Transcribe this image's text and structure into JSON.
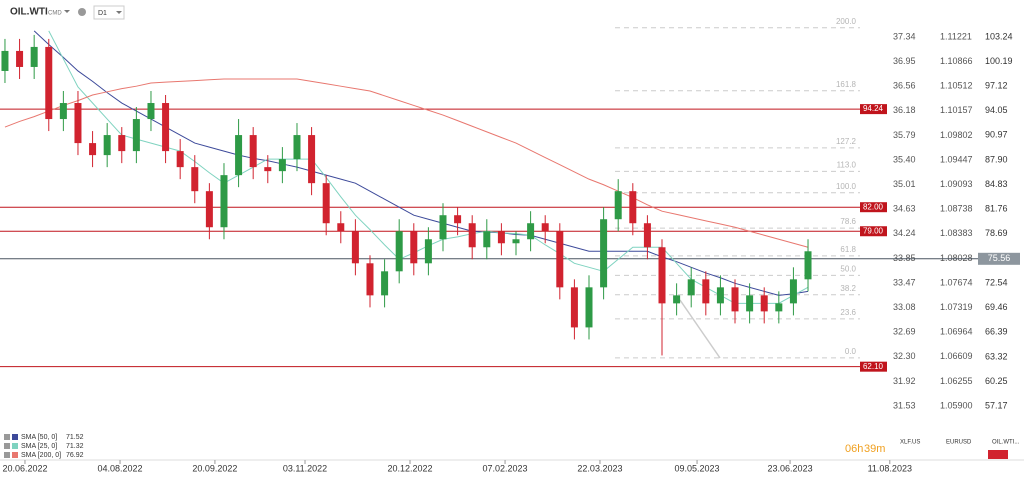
{
  "header": {
    "symbol": "OIL.WTI",
    "market": "CMD",
    "timeframe": "D1"
  },
  "chart_data": {
    "type": "candlestick",
    "xlim": [
      -0.34,
      58.56
    ],
    "xticks": [
      {
        "value": 1.37,
        "label": "20.06.2022"
      },
      {
        "value": 7.88,
        "label": "04.08.2022"
      },
      {
        "value": 14.38,
        "label": "20.09.2022"
      },
      {
        "value": 20.55,
        "label": "03.11.2022"
      },
      {
        "value": 27.74,
        "label": "20.12.2022"
      },
      {
        "value": 34.25,
        "label": "07.02.2023"
      },
      {
        "value": 40.75,
        "label": "22.03.2023"
      },
      {
        "value": 47.4,
        "label": "09.05.2023"
      },
      {
        "value": 53.77,
        "label": "23.06.2023"
      },
      {
        "value": 60.6,
        "label": "11.08.2023"
      }
    ],
    "ylim": [
      52.95,
      105.36
    ],
    "yticks": [
      103.24,
      100.19,
      97.12,
      94.05,
      90.97,
      {
        "value": 87.9,
        "label": "87.90"
      },
      84.83,
      81.76,
      78.69,
      72.54,
      69.46,
      66.39,
      63.32,
      60.25,
      57.17
    ],
    "xlf_ticks": [
      37.34,
      36.95,
      36.56,
      36.18,
      35.79,
      {
        "value": 35.4,
        "label": "35.40"
      },
      35.01,
      34.63,
      34.24,
      33.85,
      33.47,
      33.08,
      32.69,
      {
        "value": 32.3,
        "label": "32.30"
      },
      31.92,
      31.53
    ],
    "eurusd_ticks": [
      1.11221,
      1.10866,
      1.10512,
      1.10157,
      1.09802,
      1.09447,
      1.09093,
      1.08738,
      1.08383,
      1.08028,
      1.07674,
      1.07319,
      1.06964,
      1.06609,
      1.06255,
      {
        "value": 1.059,
        "label": "1.05900"
      }
    ],
    "up_color": "#2e9a46",
    "down_color": "#d1232f",
    "open": [
      99,
      101.5,
      99.5,
      102,
      93,
      95,
      90,
      88.5,
      91,
      89,
      93,
      95,
      89,
      87,
      84,
      79.5,
      86,
      91,
      87,
      86.5,
      88,
      91,
      85,
      80,
      79,
      75,
      71,
      74,
      79,
      75,
      78,
      81,
      80,
      77,
      79,
      77.5,
      78,
      80,
      79,
      72,
      67,
      72,
      80.5,
      84,
      80,
      77,
      70,
      71,
      73,
      70,
      72,
      69,
      71,
      69,
      70,
      73
    ],
    "high": [
      103,
      103,
      103.5,
      103,
      96.5,
      96.5,
      91.5,
      92.5,
      92,
      94.5,
      96.5,
      96,
      90.5,
      88.5,
      85,
      87.5,
      93,
      92,
      88.5,
      89.5,
      92.5,
      92,
      86,
      81.5,
      80.5,
      76,
      75.5,
      80.5,
      80,
      79.5,
      82.5,
      82,
      81,
      80.5,
      80,
      79,
      81.5,
      81,
      80,
      73,
      73.5,
      82,
      85.5,
      85,
      81,
      78,
      72.5,
      74.5,
      74,
      73.5,
      73,
      72.5,
      72,
      71.5,
      74.5,
      78
    ],
    "low": [
      97.5,
      98,
      98,
      91.5,
      91.5,
      88.5,
      87,
      87,
      87.5,
      87.5,
      91.5,
      87.5,
      85.5,
      82.5,
      78,
      78,
      84.5,
      85.5,
      85,
      85,
      86.5,
      83.5,
      78.5,
      77.5,
      73.5,
      69.5,
      69.5,
      72.5,
      73.5,
      73.5,
      76.5,
      78.5,
      75.5,
      75.5,
      76,
      76,
      76.5,
      77.5,
      70.5,
      65.5,
      65.5,
      70.5,
      79,
      78.5,
      75.5,
      63.5,
      68.5,
      69.5,
      68.5,
      68.5,
      67.5,
      67.5,
      67.5,
      67.5,
      68.5,
      71.5
    ],
    "close": [
      101.5,
      99.5,
      102,
      93,
      95,
      90,
      88.5,
      91,
      89,
      93,
      95,
      89,
      87,
      84,
      79.5,
      86,
      91,
      87,
      86.5,
      88,
      91,
      85,
      80,
      79,
      75,
      71,
      74,
      79,
      75,
      78,
      81,
      80,
      77,
      79,
      77.5,
      78,
      80,
      79,
      72,
      67,
      72,
      80.5,
      84,
      80,
      77,
      70,
      71,
      73,
      70,
      72,
      69,
      71,
      69,
      70,
      73,
      76.5
    ],
    "series": [
      {
        "name": "SMA [50, 0]",
        "last": 71.52,
        "color": "#3d4a9a",
        "values": [
          null,
          null,
          104,
          102.3,
          100.7,
          99,
          97.7,
          96.3,
          95,
          94,
          93,
          92,
          91,
          90,
          89.5,
          89,
          88.5,
          88.1,
          87.8,
          87.4,
          87,
          86.5,
          86,
          85.5,
          85,
          84,
          83,
          82,
          81,
          80.5,
          80,
          79.5,
          79,
          78.9,
          78.8,
          78.6,
          78.5,
          78,
          77.5,
          77,
          76.5,
          76.5,
          76.5,
          76.5,
          76.5,
          75.8,
          75.2,
          74.5,
          73.8,
          73.2,
          72.5,
          72,
          71.5,
          71,
          71.2,
          71.5
        ]
      },
      {
        "name": "SMA [25, 0]",
        "last": 71.32,
        "color": "#7fd3c0",
        "values": [
          null,
          null,
          null,
          104,
          100.5,
          97,
          95,
          93,
          91,
          90.5,
          90,
          89.5,
          89,
          87.7,
          86.3,
          85,
          86,
          87,
          88,
          88,
          88,
          88,
          85.7,
          83.3,
          81,
          79.2,
          77.3,
          75.5,
          76.3,
          77.2,
          78,
          78.3,
          78.7,
          79,
          78.8,
          78.7,
          78.5,
          77.3,
          76.2,
          75,
          74.5,
          74,
          75.5,
          77,
          77,
          77,
          75,
          73,
          72,
          71,
          70,
          70,
          70,
          70,
          71,
          72
        ]
      },
      {
        "name": "SMA [200, 0]",
        "last": 76.92,
        "color": "#e8776f",
        "values": [
          92,
          92.7,
          93.3,
          94,
          94.7,
          95.3,
          96,
          96.4,
          96.8,
          97.1,
          97.5,
          97.6,
          97.7,
          97.8,
          97.9,
          98,
          98,
          98,
          98,
          98,
          98,
          97.7,
          97.4,
          97.1,
          96.8,
          96.5,
          95.9,
          95.3,
          94.7,
          94.1,
          93.5,
          92.8,
          92.1,
          91.4,
          90.7,
          90,
          89.1,
          88.2,
          87.3,
          86.4,
          85.5,
          84.8,
          84,
          83.2,
          82.3,
          81.5,
          81.1,
          80.7,
          80.3,
          79.9,
          79.5,
          79,
          78.5,
          78,
          77.5,
          77
        ]
      }
    ],
    "levels": [
      {
        "value": 94.24,
        "label": "94.24"
      },
      {
        "value": 82,
        "label": "82.00"
      },
      {
        "value": 79,
        "label": "79.00"
      },
      {
        "value": 62.1,
        "label": "62.10"
      }
    ],
    "level_color": "#c0141c",
    "current_price": 75.56,
    "fibonacci": {
      "low": 63.2,
      "high": 83.8,
      "levels": [
        {
          "value": 200,
          "label": "200.0"
        },
        {
          "value": 161.8,
          "label": "161.8"
        },
        {
          "value": 127.2,
          "label": "127.2"
        },
        {
          "value": 113,
          "label": "113.0"
        },
        {
          "value": 100,
          "label": "100.0"
        },
        {
          "value": 78.6,
          "label": "78.6"
        },
        {
          "value": 61.8,
          "label": "61.8"
        },
        {
          "value": 50,
          "label": "50.0"
        },
        {
          "value": 38.2,
          "label": "38.2"
        },
        {
          "value": 23.6,
          "label": "23.6"
        },
        {
          "value": 0,
          "label": "0.0"
        }
      ]
    }
  },
  "footer": {
    "countdown_hours": "06h",
    "countdown_minutes": "39m",
    "tabs": [
      "XLF.US",
      "EURUSD",
      "OIL.WTI..."
    ]
  }
}
